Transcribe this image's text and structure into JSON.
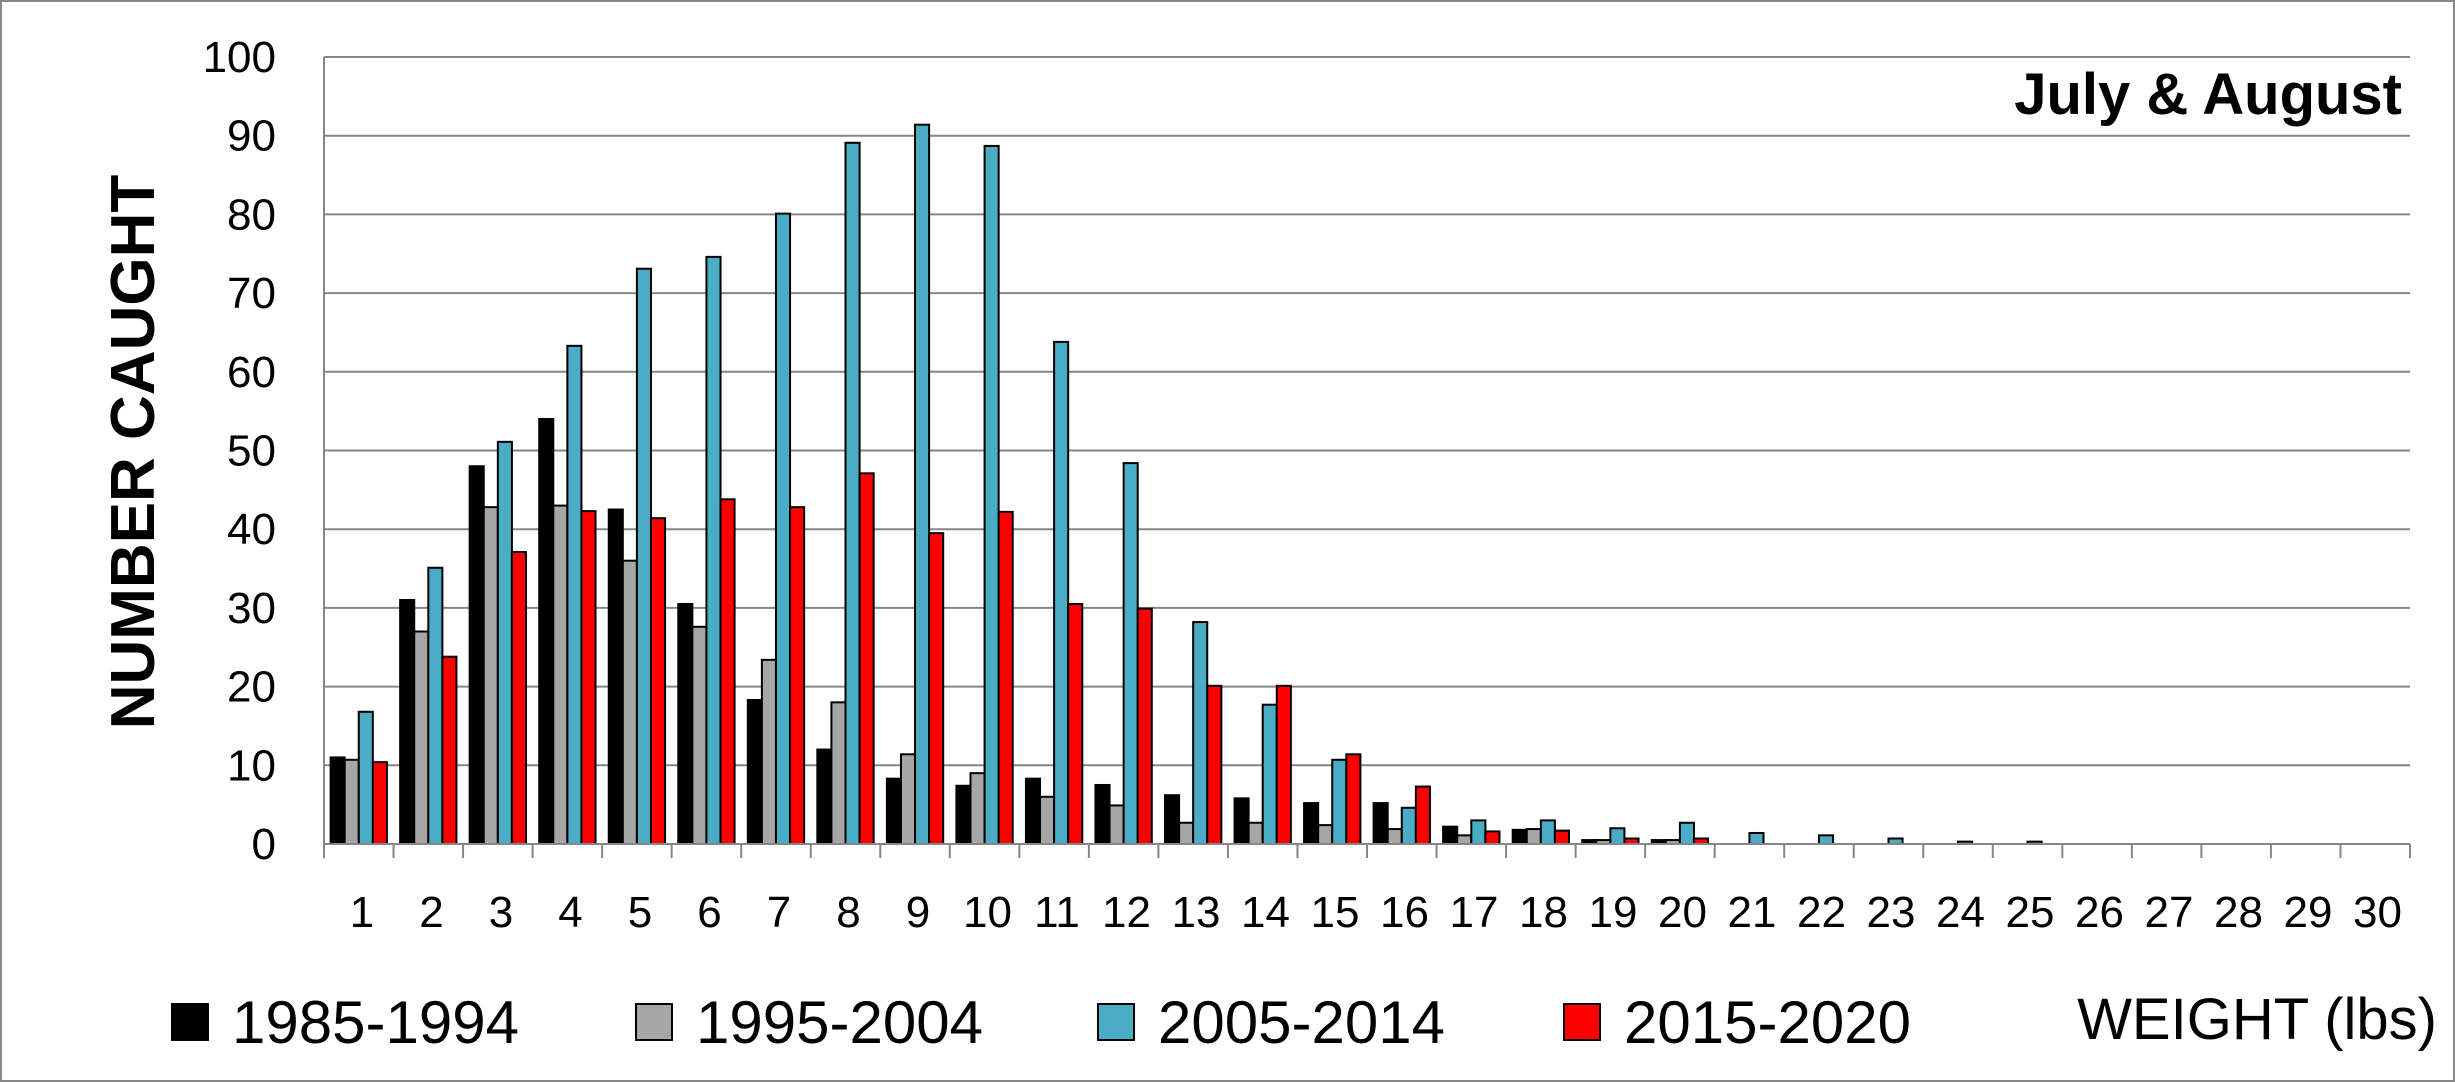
{
  "chart_data": {
    "type": "bar",
    "title": "July & August",
    "xlabel": "WEIGHT (lbs)",
    "ylabel": "NUMBER CAUGHT",
    "ylim": [
      0,
      100
    ],
    "yticks": [
      0,
      10,
      20,
      30,
      40,
      50,
      60,
      70,
      80,
      90,
      100
    ],
    "grid": true,
    "legend_position": "bottom",
    "categories": [
      "1",
      "2",
      "3",
      "4",
      "5",
      "6",
      "7",
      "8",
      "9",
      "10",
      "11",
      "12",
      "13",
      "14",
      "15",
      "16",
      "17",
      "18",
      "19",
      "20",
      "21",
      "22",
      "23",
      "24",
      "25",
      "26",
      "27",
      "28",
      "29",
      "30"
    ],
    "series": [
      {
        "name": "1985-1994",
        "color": "#000000",
        "values": [
          11,
          31,
          48,
          54,
          42.5,
          30.5,
          18.3,
          12,
          8.3,
          7.4,
          8.3,
          7.5,
          6.2,
          5.8,
          5.2,
          5.2,
          2.2,
          1.8,
          0.5,
          0.5,
          0,
          0,
          0,
          0,
          0,
          0,
          0,
          0,
          0,
          0
        ]
      },
      {
        "name": "1995-2004",
        "color": "#a6a6a6",
        "values": [
          10.7,
          27,
          42.8,
          43,
          36,
          27.6,
          23.4,
          18,
          11.4,
          9,
          6,
          4.9,
          2.7,
          2.7,
          2.4,
          1.9,
          1.1,
          1.9,
          0.5,
          0.5,
          0,
          0,
          0,
          0,
          0,
          0,
          0,
          0,
          0,
          0
        ]
      },
      {
        "name": "2005-2014",
        "color": "#4bacc6",
        "values": [
          16.8,
          35.1,
          51.1,
          63.3,
          73.1,
          74.6,
          80.1,
          89.1,
          91.4,
          88.7,
          63.8,
          48.4,
          28.2,
          17.7,
          10.7,
          4.6,
          3,
          3,
          2,
          2.7,
          1.4,
          1.1,
          0.7,
          0.3,
          0.3,
          0,
          0,
          0,
          0,
          0
        ]
      },
      {
        "name": "2015-2020",
        "color": "#ff0000",
        "values": [
          10.4,
          23.8,
          37.1,
          42.3,
          41.4,
          43.8,
          42.8,
          47.1,
          39.5,
          42.2,
          30.5,
          29.9,
          20.1,
          20.1,
          11.4,
          7.3,
          1.6,
          1.7,
          0.7,
          0.7,
          0,
          0,
          0,
          0,
          0,
          0,
          0,
          0,
          0,
          0
        ]
      }
    ]
  }
}
